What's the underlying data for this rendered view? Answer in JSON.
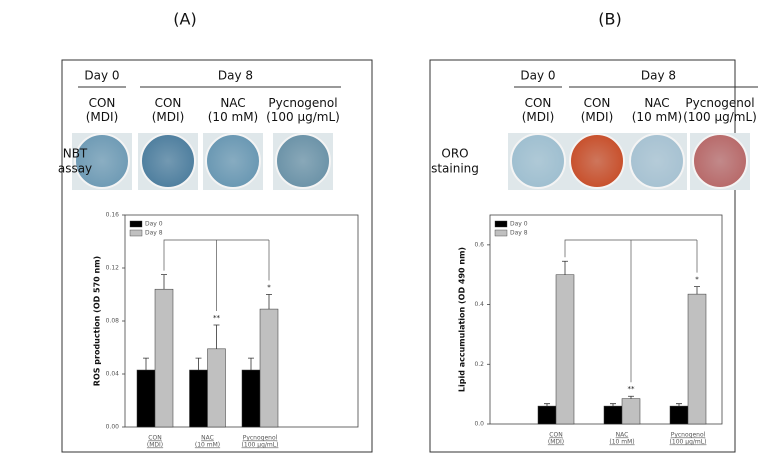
{
  "chart_data": [
    {
      "type": "bar",
      "panel_label": "(A)",
      "groups": [
        "Day 0",
        "Day 8"
      ],
      "wells": [
        {
          "label": "CON\n(MDI)",
          "color": "#6f9bb5"
        },
        {
          "label": "CON\n(MDI)",
          "color": "#4f7f9f"
        },
        {
          "label": "NAC\n(10 mM)",
          "color": "#6a98b3"
        },
        {
          "label": "Pycnogenol\n(100 μg/mL)",
          "color": "#6c93a8"
        }
      ],
      "row_label": "NBT\nassay",
      "ylabel": "ROS production (OD 570 nm)",
      "categories": [
        "CON\n(MDI)",
        "NAC\n(10 mM)",
        "Pycnogenol\n(100 μg/mL)"
      ],
      "series": [
        {
          "name": "Day 0",
          "color": "#000000",
          "values": [
            0.043,
            0.043,
            0.043
          ],
          "errors": [
            0.009,
            0.009,
            0.009
          ]
        },
        {
          "name": "Day 8",
          "color": "#c0c0c0",
          "values": [
            0.104,
            0.059,
            0.089
          ],
          "errors": [
            0.011,
            0.018,
            0.011
          ]
        }
      ],
      "significance": [
        null,
        "**",
        "*"
      ],
      "ylim": [
        0,
        0.16
      ],
      "yticks": [
        {
          "value": 0,
          "label": "0.00"
        },
        {
          "value": 0.04,
          "label": "0.04"
        },
        {
          "value": 0.08,
          "label": "0.08"
        },
        {
          "value": 0.12,
          "label": "0.12"
        },
        {
          "value": 0.16,
          "label": "0.16"
        }
      ],
      "legend": "upper left"
    },
    {
      "type": "bar",
      "panel_label": "(B)",
      "groups": [
        "Day 0",
        "Day 8"
      ],
      "wells": [
        {
          "label": "CON\n(MDI)",
          "color": "#9fbfd0"
        },
        {
          "label": "CON\n(MDI)",
          "color": "#c8502c"
        },
        {
          "label": "NAC\n(10 mM)",
          "color": "#a7c2d2"
        },
        {
          "label": "Pycnogenol\n(100 μg/mL)",
          "color": "#b86a6a"
        }
      ],
      "row_label": "ORO\nstaining",
      "ylabel": "Lipid accumulation (OD 490 nm)",
      "categories": [
        "CON\n(MDI)",
        "NAC\n(10 mM)",
        "Pycnogenol\n(100 μg/mL)"
      ],
      "series": [
        {
          "name": "Day 0",
          "color": "#000000",
          "values": [
            0.06,
            0.06,
            0.06
          ],
          "errors": [
            0.008,
            0.008,
            0.008
          ]
        },
        {
          "name": "Day 8",
          "color": "#c0c0c0",
          "values": [
            0.5,
            0.085,
            0.435
          ],
          "errors": [
            0.045,
            0.008,
            0.025
          ]
        }
      ],
      "significance": [
        null,
        "**",
        "*"
      ],
      "ylim": [
        0,
        0.7
      ],
      "yticks": [
        {
          "value": 0,
          "label": "0.0"
        },
        {
          "value": 0.2,
          "label": "0.2"
        },
        {
          "value": 0.4,
          "label": "0.4"
        },
        {
          "value": 0.6,
          "label": "0.6"
        }
      ],
      "legend": "upper left"
    }
  ]
}
